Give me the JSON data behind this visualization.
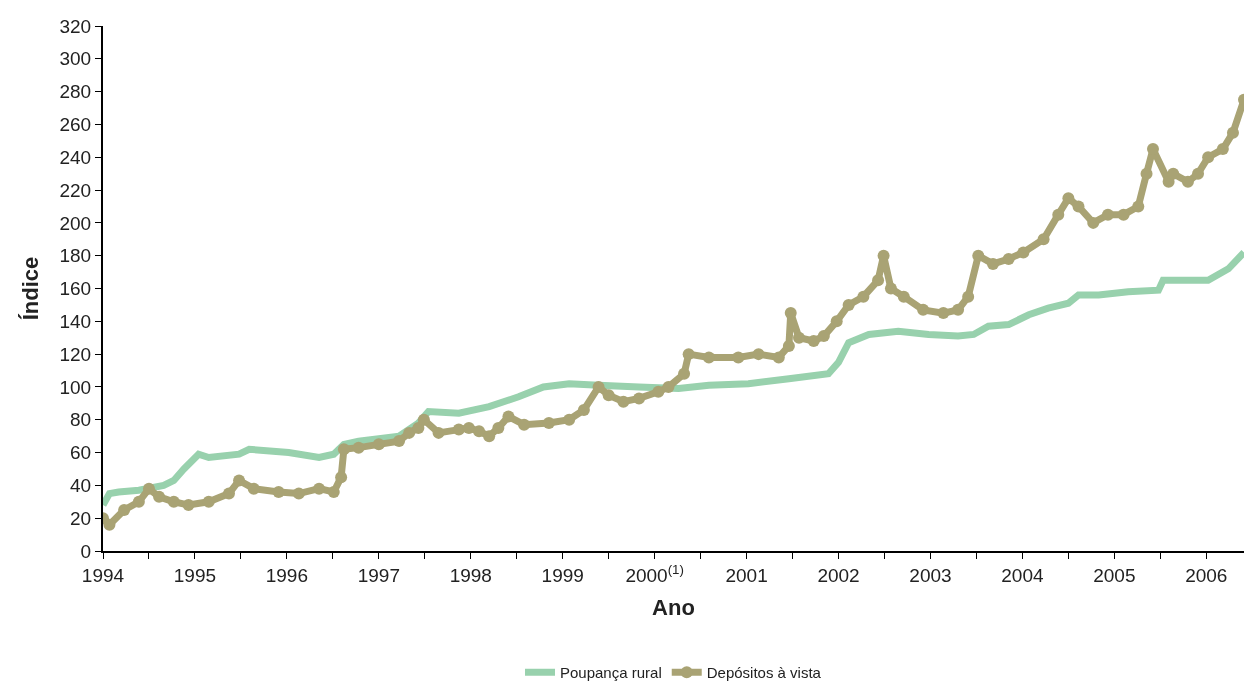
{
  "chart_data": {
    "type": "line",
    "xlabel": "Ano",
    "ylabel": "Índice",
    "xlim": [
      1994,
      2006.41
    ],
    "ylim": [
      0,
      320
    ],
    "xticks": [
      {
        "value": 1994,
        "label": "1994"
      },
      {
        "value": 1994.5,
        "label": null
      },
      {
        "value": 1995,
        "label": "1995"
      },
      {
        "value": 1995.5,
        "label": null
      },
      {
        "value": 1996,
        "label": "1996"
      },
      {
        "value": 1996.5,
        "label": null
      },
      {
        "value": 1997,
        "label": "1997"
      },
      {
        "value": 1997.5,
        "label": null
      },
      {
        "value": 1998,
        "label": "1998"
      },
      {
        "value": 1998.5,
        "label": null
      },
      {
        "value": 1999,
        "label": "1999"
      },
      {
        "value": 1999.5,
        "label": null
      },
      {
        "value": 2000,
        "label": "2000$^{(1)}$"
      },
      {
        "value": 2000.5,
        "label": null
      },
      {
        "value": 2001,
        "label": "2001"
      },
      {
        "value": 2001.5,
        "label": null
      },
      {
        "value": 2002,
        "label": "2002"
      },
      {
        "value": 2002.5,
        "label": null
      },
      {
        "value": 2003,
        "label": "2003"
      },
      {
        "value": 2003.5,
        "label": null
      },
      {
        "value": 2004,
        "label": "2004"
      },
      {
        "value": 2004.5,
        "label": null
      },
      {
        "value": 2005,
        "label": "2005"
      },
      {
        "value": 2005.5,
        "label": null
      },
      {
        "value": 2006,
        "label": "2006"
      }
    ],
    "yticks": [
      0,
      20,
      40,
      60,
      80,
      100,
      120,
      140,
      160,
      180,
      200,
      220,
      240,
      260,
      280,
      300,
      320
    ],
    "legend": "bottom",
    "line_style": "solid",
    "series": [
      {
        "name": "Poupança rural",
        "color": "#98d1ad",
        "marker": "none",
        "x": [
          1994,
          1994.07,
          1994.17,
          1994.39,
          1994.66,
          1994.77,
          1994.88,
          1995.04,
          1995.15,
          1995.48,
          1995.59,
          1996.02,
          1996.35,
          1996.51,
          1996.62,
          1996.78,
          1997.22,
          1997.43,
          1997.54,
          1997.87,
          1998.2,
          1998.52,
          1998.79,
          1999.07,
          1999.39,
          1999.83,
          2000.26,
          2000.59,
          2001.02,
          2001.46,
          2001.89,
          2002,
          2002.11,
          2002.33,
          2002.65,
          2002.98,
          2003.3,
          2003.47,
          2003.63,
          2003.85,
          2004.07,
          2004.28,
          2004.5,
          2004.61,
          2004.83,
          2005.15,
          2005.48,
          2005.53,
          2005.8,
          2006.02,
          2006.24,
          2006.41
        ],
        "values": [
          28,
          35,
          36,
          37,
          40,
          43,
          50,
          59,
          57,
          59,
          62,
          60,
          57,
          59,
          65,
          67,
          70,
          78,
          85,
          84,
          88,
          94,
          100,
          102,
          101,
          100,
          99,
          101,
          102,
          105,
          108,
          115,
          127,
          132,
          134,
          132,
          131,
          132,
          137,
          138,
          144,
          148,
          151,
          156,
          156,
          158,
          159,
          165,
          165,
          165,
          172,
          182
        ]
      },
      {
        "name": "Depósitos à vista",
        "color": "#a9a374",
        "marker": "circle",
        "x": [
          1994,
          1994.07,
          1994.23,
          1994.39,
          1994.5,
          1994.61,
          1994.77,
          1994.93,
          1995.15,
          1995.37,
          1995.48,
          1995.64,
          1995.91,
          1996.13,
          1996.35,
          1996.51,
          1996.59,
          1996.62,
          1996.78,
          1997,
          1997.22,
          1997.33,
          1997.43,
          1997.49,
          1997.65,
          1997.87,
          1997.98,
          1998.09,
          1998.2,
          1998.3,
          1998.41,
          1998.58,
          1998.85,
          1999.07,
          1999.23,
          1999.39,
          1999.5,
          1999.66,
          1999.83,
          2000.04,
          2000.15,
          2000.32,
          2000.37,
          2000.59,
          2000.91,
          2001.13,
          2001.35,
          2001.46,
          2001.48,
          2001.57,
          2001.73,
          2001.84,
          2001.98,
          2002.11,
          2002.27,
          2002.43,
          2002.49,
          2002.57,
          2002.71,
          2002.92,
          2003.14,
          2003.3,
          2003.41,
          2003.52,
          2003.68,
          2003.85,
          2004.01,
          2004.23,
          2004.39,
          2004.5,
          2004.61,
          2004.77,
          2004.93,
          2005.1,
          2005.26,
          2005.35,
          2005.42,
          2005.59,
          2005.64,
          2005.8,
          2005.91,
          2006.02,
          2006.18,
          2006.29,
          2006.41
        ],
        "values": [
          20,
          16,
          25,
          30,
          38,
          33,
          30,
          28,
          30,
          35,
          43,
          38,
          36,
          35,
          38,
          36,
          45,
          62,
          63,
          65,
          67,
          72,
          75,
          80,
          72,
          74,
          75,
          73,
          70,
          75,
          82,
          77,
          78,
          80,
          86,
          100,
          95,
          91,
          93,
          97,
          100,
          108,
          120,
          118,
          118,
          120,
          118,
          125,
          145,
          130,
          128,
          131,
          140,
          150,
          155,
          165,
          180,
          160,
          155,
          147,
          145,
          147,
          155,
          180,
          175,
          178,
          182,
          190,
          205,
          215,
          210,
          200,
          205,
          205,
          210,
          230,
          245,
          225,
          230,
          225,
          230,
          240,
          245,
          255,
          275
        ]
      }
    ]
  }
}
